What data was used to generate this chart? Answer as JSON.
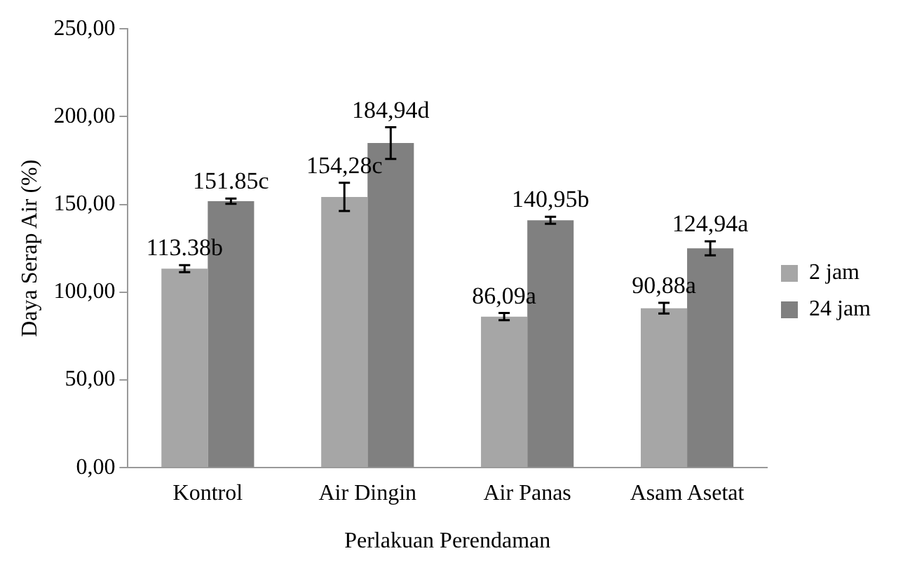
{
  "chart_data": {
    "type": "bar",
    "xlabel": "Perlakuan Perendaman",
    "ylabel": "Daya Serap Air (%)",
    "categories": [
      "Kontrol",
      "Air Dingin",
      "Air Panas",
      "Asam Asetat"
    ],
    "series": [
      {
        "name": "2 jam",
        "color": "#a6a6a6",
        "values": [
          113.38,
          154.28,
          86.09,
          90.88
        ],
        "errors": [
          2,
          8,
          2,
          3
        ],
        "value_labels": [
          "113.38b",
          "154,28c",
          "86,09a",
          "90,88a"
        ]
      },
      {
        "name": "24 jam",
        "color": "#808080",
        "values": [
          151.85,
          184.94,
          140.95,
          124.94
        ],
        "errors": [
          1.5,
          9,
          2,
          4
        ],
        "value_labels": [
          "151.85c",
          "184,94d",
          "140,95b",
          "124,94a"
        ]
      }
    ],
    "ylim": [
      0,
      250
    ],
    "yticks": [
      {
        "value": 0,
        "label": "0,00"
      },
      {
        "value": 50,
        "label": "50,00"
      },
      {
        "value": 100,
        "label": "100,00"
      },
      {
        "value": 150,
        "label": "150,00"
      },
      {
        "value": 200,
        "label": "200,00"
      },
      {
        "value": 250,
        "label": "250,00"
      }
    ],
    "grid": false,
    "legend": "right"
  }
}
